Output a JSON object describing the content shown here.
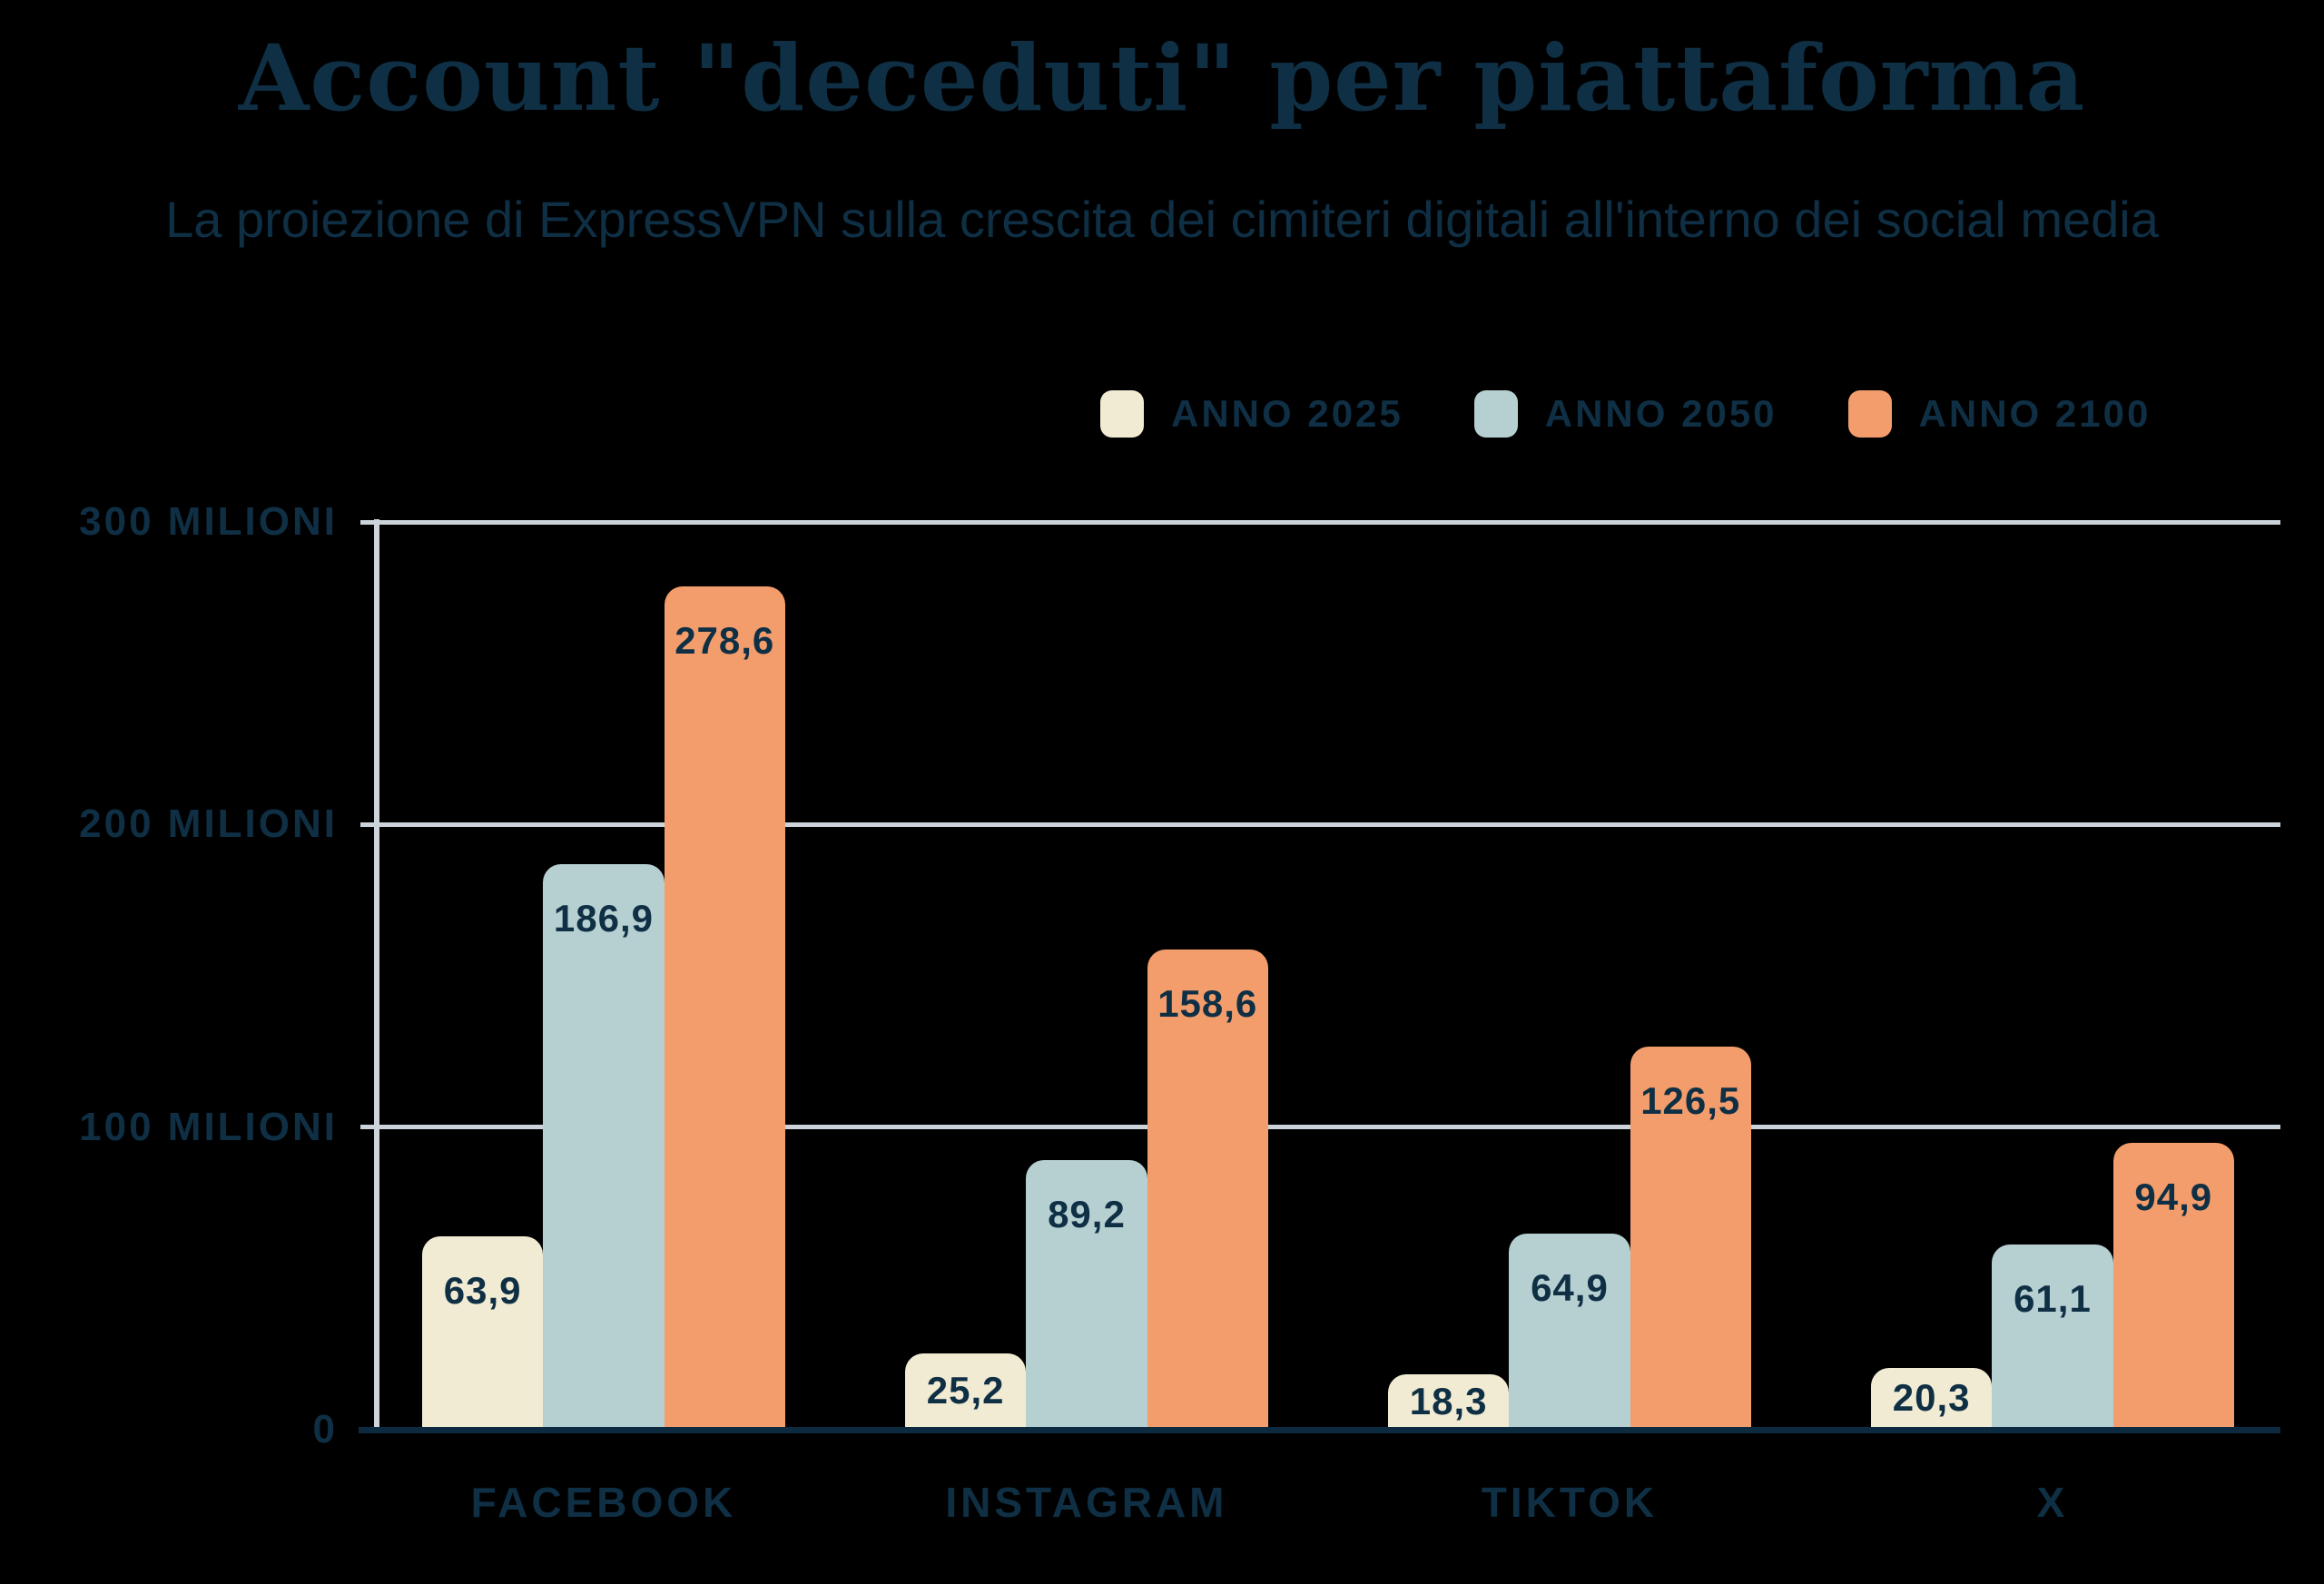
{
  "title": "Account \"deceduti\" per piattaforma",
  "subtitle": "La proiezione di ExpressVPN sulla crescita dei cimiteri digitali all'interno dei social media",
  "colors": {
    "background": "#000000",
    "text_navy": "#0f2f45",
    "grid_gray": "#ccd3da",
    "axis_baseline_navy": "#0d2b40",
    "series_2025_cream": "#f0ebd2",
    "series_2050_blue": "#b6cfd1",
    "series_2100_orange": "#f29d6b"
  },
  "legend": {
    "items": [
      {
        "label": "ANNO 2025",
        "color": "#f0ebd2"
      },
      {
        "label": "ANNO 2050",
        "color": "#b6cfd1"
      },
      {
        "label": "ANNO 2100",
        "color": "#f29d6b"
      }
    ]
  },
  "chart_data": {
    "type": "bar",
    "title": "Account \"deceduti\" per piattaforma",
    "subtitle": "La proiezione di ExpressVPN sulla crescita dei cimiteri digitali all'interno dei social media",
    "categories": [
      "FACEBOOK",
      "INSTAGRAM",
      "TIKTOK",
      "X"
    ],
    "series": [
      {
        "name": "ANNO 2025",
        "color": "#f0ebd2",
        "values": [
          63.9,
          25.2,
          18.3,
          20.3
        ],
        "value_labels": [
          "63,9",
          "25,2",
          "18,3",
          "20,3"
        ]
      },
      {
        "name": "ANNO 2050",
        "color": "#b6cfd1",
        "values": [
          186.9,
          89.2,
          64.9,
          61.1
        ],
        "value_labels": [
          "186,9",
          "89,2",
          "64,9",
          "61,1"
        ]
      },
      {
        "name": "ANNO 2100",
        "color": "#f29d6b",
        "values": [
          278.6,
          158.6,
          126.5,
          94.9
        ],
        "value_labels": [
          "278,6",
          "158,6",
          "126,5",
          "94,9"
        ]
      }
    ],
    "unit": "milioni",
    "ylim": [
      0,
      300
    ],
    "yticks": [
      {
        "value": 300,
        "label": "300 MILIONI"
      },
      {
        "value": 200,
        "label": "200 MILIONI"
      },
      {
        "value": 100,
        "label": "100 MILIONI"
      },
      {
        "value": 0,
        "label": "0"
      }
    ],
    "grid": true,
    "legend_position": "top-right"
  }
}
